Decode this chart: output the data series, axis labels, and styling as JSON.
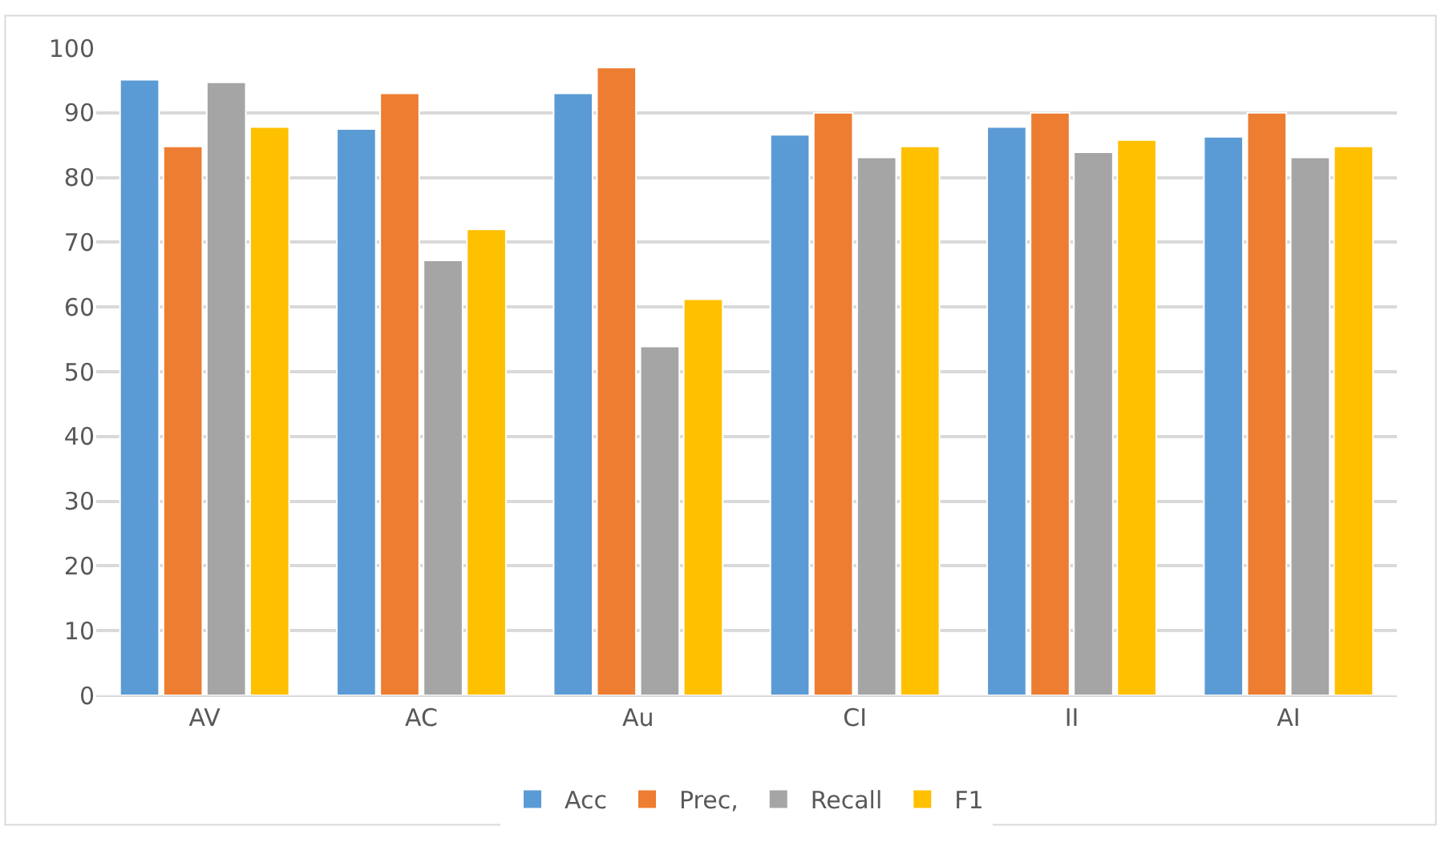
{
  "chart_data": {
    "type": "bar",
    "categories": [
      "AV",
      "AC",
      "Au",
      "CI",
      "II",
      "AI"
    ],
    "series": [
      {
        "name": "Acc",
        "color": "#5b9bd5",
        "values": [
          95.1,
          87.5,
          93,
          86.6,
          87.8,
          86.3
        ]
      },
      {
        "name": "Prec,",
        "color": "#ed7d31",
        "values": [
          84.8,
          93,
          97,
          90,
          90,
          90
        ]
      },
      {
        "name": "Recall",
        "color": "#a5a5a5",
        "values": [
          94.7,
          67.2,
          53.9,
          83.1,
          83.9,
          83.1
        ]
      },
      {
        "name": "F1",
        "color": "#ffc000",
        "values": [
          87.8,
          72,
          61.2,
          84.8,
          85.8,
          84.8
        ]
      }
    ],
    "ylim": [
      0,
      100
    ],
    "yticks": [
      0,
      10,
      20,
      30,
      40,
      50,
      60,
      70,
      80,
      90,
      100
    ],
    "grid": "y",
    "legend": "bottom"
  }
}
